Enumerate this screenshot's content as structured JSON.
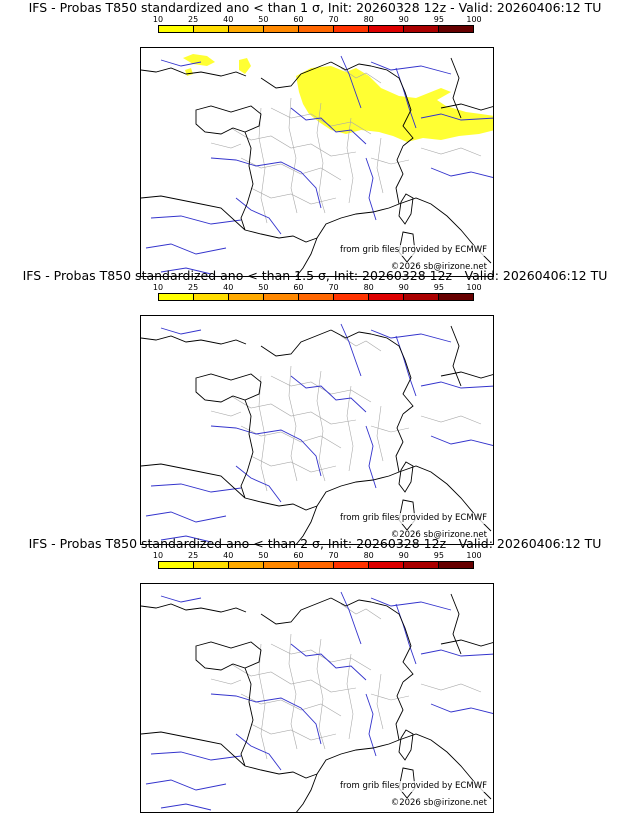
{
  "panels": [
    {
      "title": "IFS - Probas T850  standardized ano < than 1 σ, Init: 20260328 12z - Valid: 20260406:12 TU",
      "has_probability_area": true,
      "probability_class": "10-25"
    },
    {
      "title": "IFS - Probas T850  standardized ano < than 1.5 σ, Init: 20260328 12z - Valid: 20260406:12 TU",
      "has_probability_area": false
    },
    {
      "title": "IFS - Probas T850  standardized ano < than 2 σ, Init: 20260328 12z - Valid: 20260406:12 TU",
      "has_probability_area": false
    }
  ],
  "scale": {
    "labels": [
      "10",
      "25",
      "40",
      "50",
      "60",
      "70",
      "80",
      "90",
      "95",
      "100"
    ],
    "colors": [
      "#ffff00",
      "#ffdd00",
      "#ffaa00",
      "#ff8800",
      "#ff6600",
      "#ff3300",
      "#dd0000",
      "#aa0000",
      "#660000"
    ]
  },
  "credits": {
    "grib": "from grib files provided by ECMWF",
    "copyright": "©2026 sb@irizone.net"
  },
  "colors": {
    "probability_fill": "#ffff33",
    "rivers": "#3333cc",
    "borders": "#000000",
    "departments": "#aaaaaa"
  }
}
